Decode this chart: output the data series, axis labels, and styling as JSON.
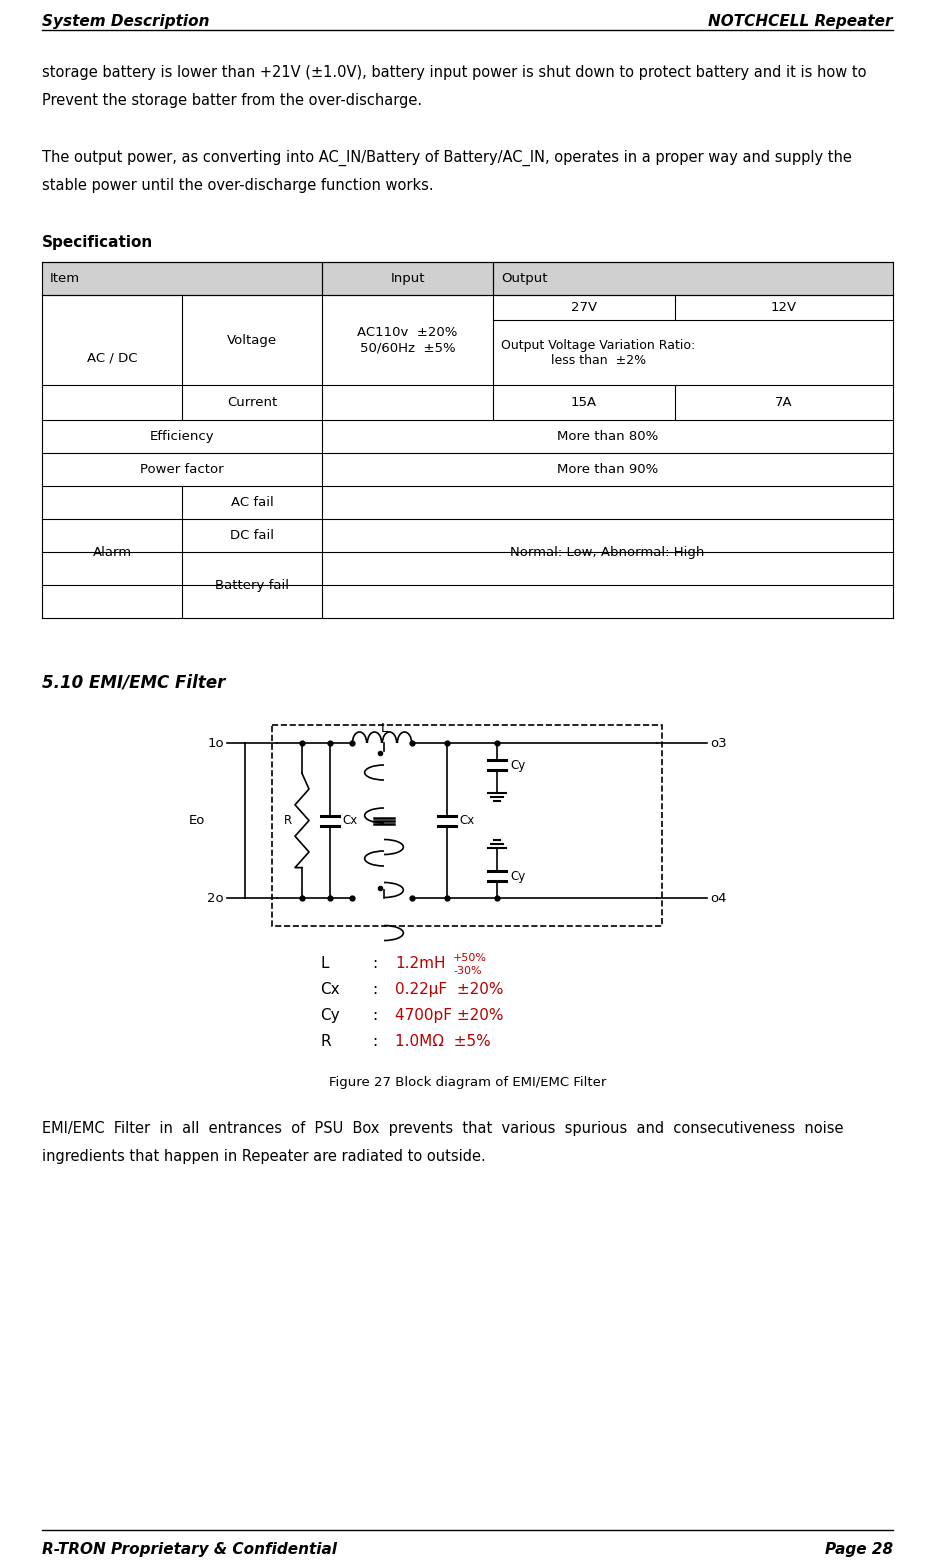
{
  "header_left": "System Description",
  "header_right": "NOTCHCELL Repeater",
  "footer_left": "R-TRON Proprietary & Confidential",
  "footer_right": "Page 28",
  "para1_line1": "storage battery is lower than +21V (±1.0V), battery input power is shut down to protect battery and it is how to",
  "para1_line2": "Prevent the storage batter from the over-discharge.",
  "para2_line1": "The output power, as converting into AC_IN/Battery of Battery/AC_IN, operates in a proper way and supply the",
  "para2_line2": "stable power until the over-discharge function works.",
  "spec_label": "Specification",
  "section_label": "5.10 EMI/EMC Filter",
  "figure_caption": "Figure 27 Block diagram of EMI/EMC Filter",
  "emi_desc_line1": "EMI/EMC  Filter  in  all  entrances  of  PSU  Box  prevents  that  various  spurious  and  consecutiveness  noise",
  "emi_desc_line2": "ingredients that happen in Repeater are radiated to outside.",
  "spec_values": {
    "L": "1.2mH",
    "L_tol_hi": "+50%",
    "L_tol_lo": "-30%",
    "Cx": "0.22μF",
    "Cx_tol": "±20%",
    "Cy": "4700pF",
    "Cy_tol": "±20%",
    "R": "1.0MΩ",
    "R_tol": "±5%"
  },
  "bg_color": "#ffffff",
  "text_color": "#000000",
  "header_font_size": 11,
  "body_font_size": 10.5,
  "table_font_size": 9.5
}
